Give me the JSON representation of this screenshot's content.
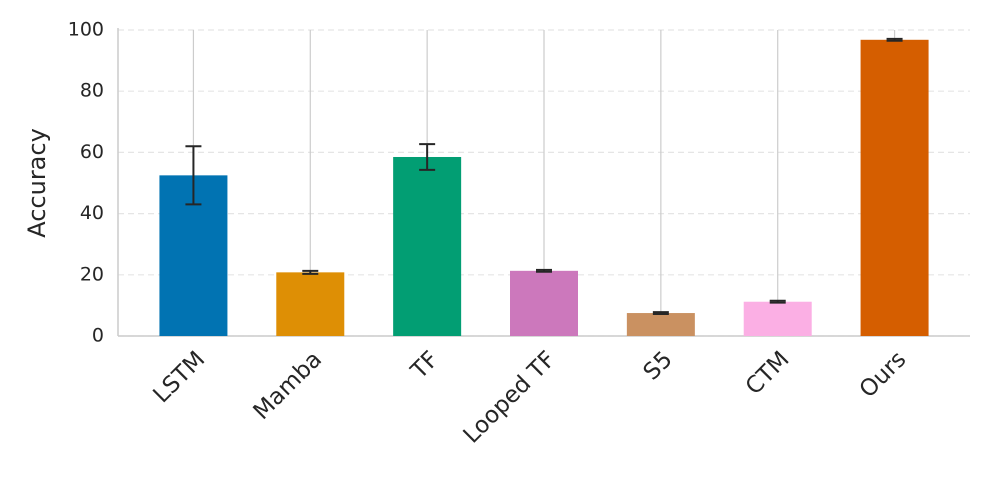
{
  "chart_data": {
    "type": "bar",
    "y_label": "Accuracy",
    "categories": [
      "LSTM",
      "Mamba",
      "TF",
      "Looped TF",
      "S5",
      "CTM",
      "Ours"
    ],
    "values": [
      52.5,
      20.8,
      58.5,
      21.3,
      7.5,
      11.2,
      96.8
    ],
    "errors": [
      9.5,
      0.5,
      4.2,
      0.3,
      0.3,
      0.3,
      0.3
    ],
    "colors": [
      "#0173b2",
      "#de8f05",
      "#029e73",
      "#cc78bc",
      "#ca9161",
      "#fbafe4",
      "#d55e00"
    ],
    "ylim": [
      0,
      100
    ],
    "yticks": [
      0,
      20,
      40,
      60,
      80,
      100
    ],
    "grid": true
  }
}
